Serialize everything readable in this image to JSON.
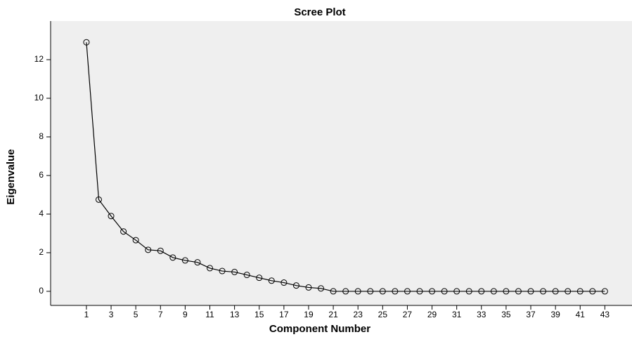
{
  "chart_data": {
    "type": "line",
    "title": "Scree Plot",
    "x_label": "Component Number",
    "y_label": "Eigenvalue",
    "x": [
      1,
      2,
      3,
      4,
      5,
      6,
      7,
      8,
      9,
      10,
      11,
      12,
      13,
      14,
      15,
      16,
      17,
      18,
      19,
      20,
      21,
      22,
      23,
      24,
      25,
      26,
      27,
      28,
      29,
      30,
      31,
      32,
      33,
      34,
      35,
      36,
      37,
      38,
      39,
      40,
      41,
      42,
      43
    ],
    "series": [
      {
        "name": "Eigenvalue",
        "color": "#000000",
        "values": [
          12.9,
          4.75,
          3.9,
          3.1,
          2.65,
          2.15,
          2.1,
          1.75,
          1.6,
          1.5,
          1.2,
          1.05,
          1.0,
          0.85,
          0.7,
          0.55,
          0.45,
          0.3,
          0.2,
          0.15,
          0,
          0,
          0,
          0,
          0,
          0,
          0,
          0,
          0,
          0,
          0,
          0,
          0,
          0,
          0,
          0,
          0,
          0,
          0,
          0,
          0,
          0,
          0
        ]
      }
    ],
    "xlim": [
      -1.9,
      45.2
    ],
    "ylim": [
      -0.73,
      14
    ],
    "xticks": [
      1,
      3,
      5,
      7,
      9,
      11,
      13,
      15,
      17,
      19,
      21,
      23,
      25,
      27,
      29,
      31,
      33,
      35,
      37,
      39,
      41,
      43
    ],
    "yticks": [
      0,
      2,
      4,
      6,
      8,
      10,
      12
    ],
    "background": "#efefef",
    "marker": "hollow-circle"
  }
}
